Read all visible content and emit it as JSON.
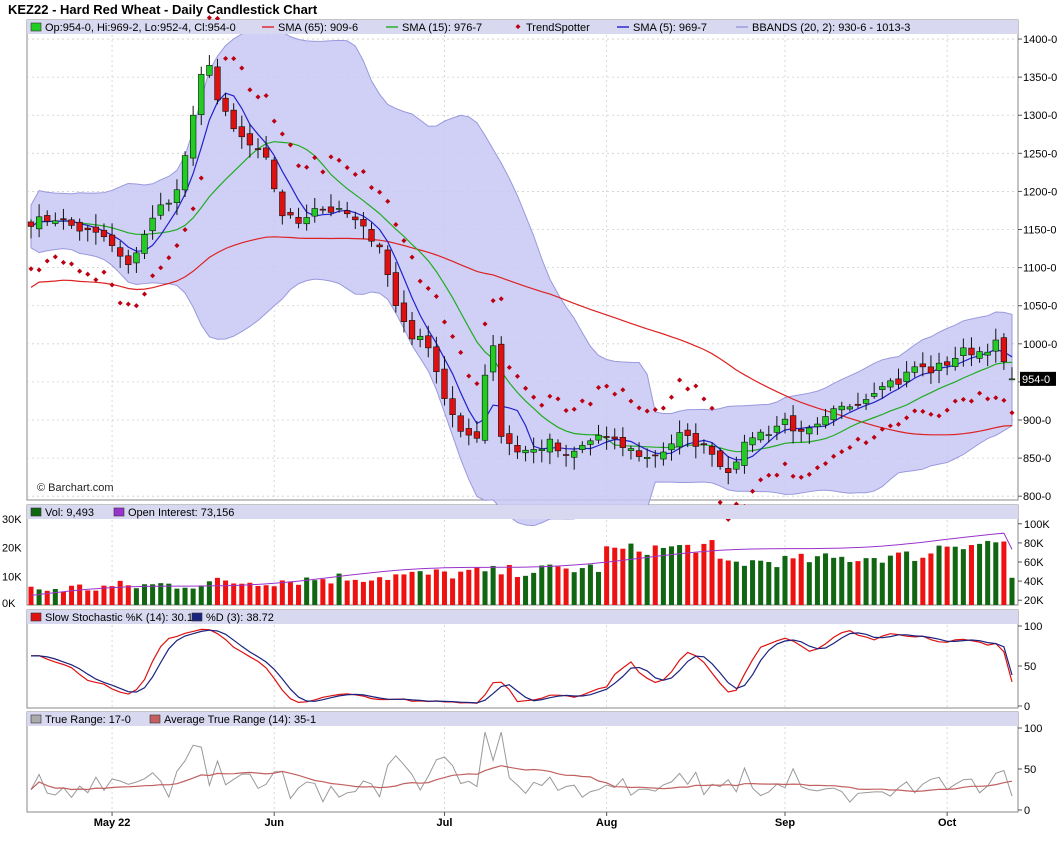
{
  "title": "KEZ22 - Hard Red Wheat - Daily Candlestick Chart",
  "colors": {
    "up": "#22cc22",
    "down": "#dd1111",
    "sma65": "#dd2222",
    "sma15": "#22aa22",
    "sma5": "#2222cc",
    "trendspotter": "#bb0011",
    "bbands_fill": "#c8c8f4",
    "bbands_line": "#9999dd",
    "vol_up": "#116611",
    "vol_down": "#ee1111",
    "vol_up_light": "#88b888",
    "oi_line": "#9933cc",
    "stoch_k": "#dd1111",
    "stoch_d": "#1a237e",
    "tr": "#999999",
    "atr": "#c26060",
    "legend_bg": "#d8d8f0",
    "grid": "#cfcfcf"
  },
  "watermark": "© Barchart.com",
  "price_panel": {
    "legend": {
      "ohlc": "Op:954-0, Hi:969-2, Lo:952-4, Cl:954-0",
      "sma65": "SMA (65): 909-6",
      "sma15": "SMA (15): 976-7",
      "trendspotter": "TrendSpotter",
      "sma5": "SMA (5): 969-7",
      "bbands": "BBANDS (20, 2): 930-6 - 1013-3"
    },
    "y_ticks": [
      "1400-0",
      "1350-0",
      "1300-0",
      "1250-0",
      "1200-0",
      "1150-0",
      "1100-0",
      "1050-0",
      "1000-0",
      "950-0",
      "900-0",
      "850-0",
      "800-0"
    ],
    "y_tick_values": [
      1400,
      1350,
      1300,
      1250,
      1200,
      1150,
      1100,
      1050,
      1000,
      950,
      900,
      850,
      800
    ],
    "ylim": [
      795,
      1425
    ],
    "last_price_label": "954-0",
    "last_price": 954
  },
  "volume_panel": {
    "legend": {
      "vol": "Vol: 9,493",
      "oi": "Open Interest: 73,156"
    },
    "left_ticks": [
      "30K",
      "20K",
      "10K",
      "0K"
    ],
    "left_tick_values": [
      30000,
      20000,
      10000,
      0
    ],
    "right_ticks": [
      "100K",
      "80K",
      "60K",
      "40K",
      "20K"
    ],
    "right_tick_values": [
      100000,
      80000,
      60000,
      40000,
      20000
    ],
    "vol_ylim": [
      0,
      30000
    ],
    "oi_ylim": [
      15000,
      105000
    ]
  },
  "stoch_panel": {
    "legend": {
      "k": "Slow Stochastic %K (14): 30.14",
      "d": "%D (3): 38.72"
    },
    "ticks": [
      "100",
      "50",
      "0"
    ],
    "tick_values": [
      100,
      50,
      0
    ],
    "ylim": [
      0,
      100
    ]
  },
  "tr_panel": {
    "legend": {
      "tr": "True Range: 17-0",
      "atr": "Average True Range (14): 35-1"
    },
    "ticks": [
      "100",
      "50",
      "0"
    ],
    "tick_values": [
      100,
      50,
      0
    ],
    "ylim": [
      0,
      100
    ]
  },
  "x_labels": [
    {
      "label": "May 22",
      "index": 10
    },
    {
      "label": "Jun",
      "index": 30
    },
    {
      "label": "Jul",
      "index": 51
    },
    {
      "label": "Aug",
      "index": 71
    },
    {
      "label": "Sep",
      "index": 93
    },
    {
      "label": "Oct",
      "index": 113
    }
  ],
  "chart_data": {
    "type": "candlestick",
    "title": "KEZ22 - Hard Red Wheat - Daily Candlestick Chart",
    "n_bars": 122,
    "anchors": [
      [
        0,
        1160
      ],
      [
        3,
        1165
      ],
      [
        6,
        1150
      ],
      [
        9,
        1140
      ],
      [
        12,
        1100
      ],
      [
        14,
        1145
      ],
      [
        16,
        1180
      ],
      [
        18,
        1200
      ],
      [
        20,
        1295
      ],
      [
        21,
        1350
      ],
      [
        22,
        1370
      ],
      [
        23,
        1320
      ],
      [
        25,
        1280
      ],
      [
        27,
        1260
      ],
      [
        29,
        1240
      ],
      [
        31,
        1170
      ],
      [
        33,
        1160
      ],
      [
        35,
        1180
      ],
      [
        37,
        1175
      ],
      [
        39,
        1170
      ],
      [
        41,
        1150
      ],
      [
        43,
        1130
      ],
      [
        45,
        1050
      ],
      [
        47,
        1010
      ],
      [
        49,
        1000
      ],
      [
        51,
        930
      ],
      [
        53,
        880
      ],
      [
        55,
        880
      ],
      [
        56,
        960
      ],
      [
        57,
        1000
      ],
      [
        58,
        880
      ],
      [
        60,
        860
      ],
      [
        62,
        860
      ],
      [
        64,
        870
      ],
      [
        66,
        850
      ],
      [
        68,
        865
      ],
      [
        70,
        880
      ],
      [
        72,
        870
      ],
      [
        74,
        860
      ],
      [
        76,
        850
      ],
      [
        78,
        860
      ],
      [
        80,
        880
      ],
      [
        82,
        870
      ],
      [
        84,
        860
      ],
      [
        85,
        840
      ],
      [
        86,
        835
      ],
      [
        87,
        850
      ],
      [
        89,
        880
      ],
      [
        91,
        885
      ],
      [
        93,
        900
      ],
      [
        95,
        880
      ],
      [
        97,
        890
      ],
      [
        99,
        910
      ],
      [
        101,
        920
      ],
      [
        103,
        930
      ],
      [
        105,
        950
      ],
      [
        107,
        950
      ],
      [
        109,
        970
      ],
      [
        111,
        965
      ],
      [
        113,
        975
      ],
      [
        115,
        990
      ],
      [
        117,
        990
      ],
      [
        119,
        1000
      ],
      [
        120,
        975
      ],
      [
        121,
        954
      ]
    ],
    "last_bar": {
      "open": 954,
      "high": 969.25,
      "low": 952.5,
      "close": 954
    },
    "sma65": 909.75,
    "sma15": 976.875,
    "sma5": 969.875,
    "bbands": {
      "lower": 930.75,
      "upper": 1013.375
    },
    "volume": 9493,
    "open_interest": 73156,
    "slow_stoch_k": 30.14,
    "slow_stoch_d": 38.72,
    "true_range": 17,
    "average_true_range": 35.125
  }
}
